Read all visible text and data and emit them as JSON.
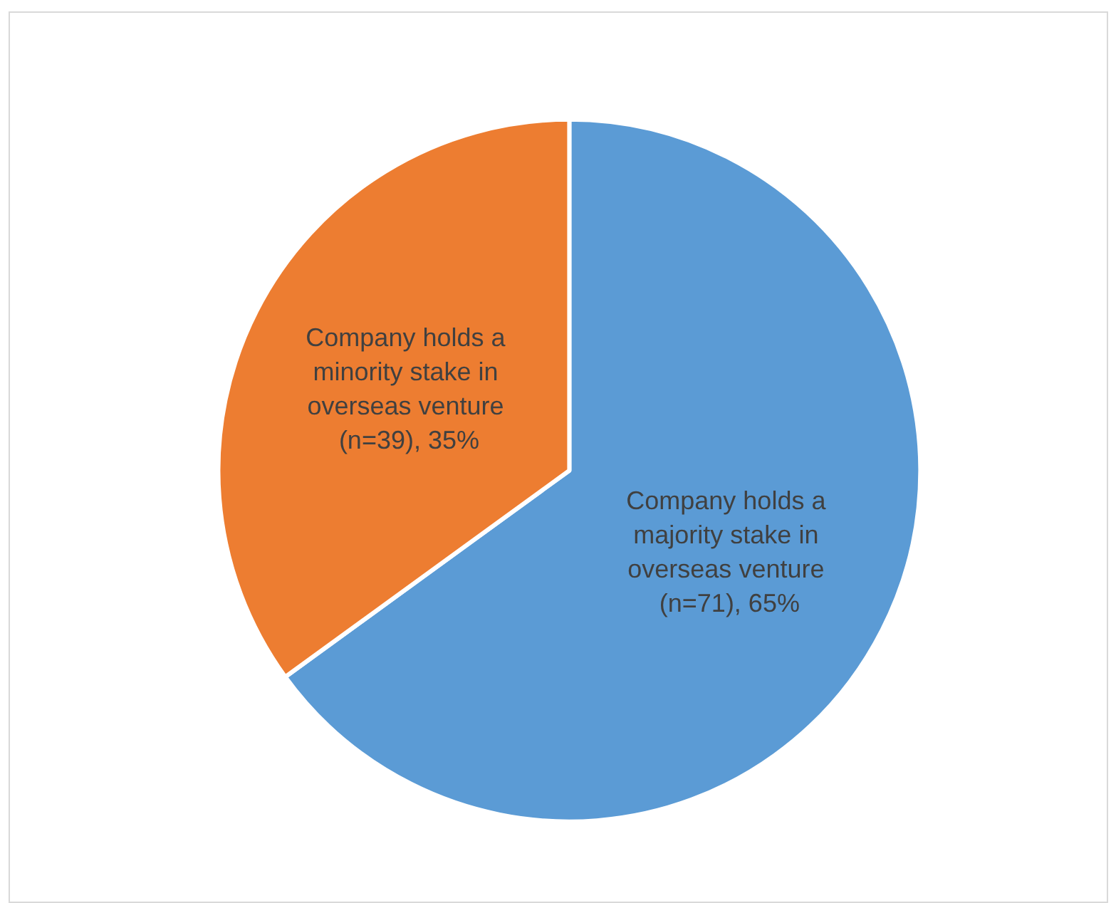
{
  "chart_data": {
    "type": "pie",
    "categories": [
      "Company holds a majority stake in overseas venture (n=71)",
      "Company holds a minority stake in overseas venture (n=39)"
    ],
    "values": [
      65,
      35
    ],
    "value_labels": [
      "65%",
      "35%"
    ],
    "colors": [
      "#5b9bd5",
      "#ed7d31"
    ],
    "legend": false
  }
}
